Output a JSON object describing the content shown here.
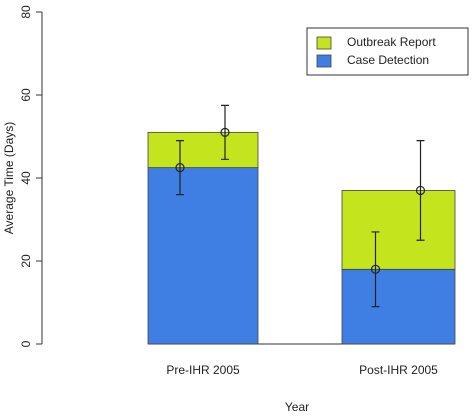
{
  "chart_data": {
    "type": "stacked_bar_error",
    "x_label": "Year",
    "y_label": "Average Time (Days)",
    "categories": [
      "Pre-IHR 2005",
      "Post-IHR 2005"
    ],
    "series": [
      {
        "name": "Case Detection",
        "color": "#3f7fe4",
        "values": [
          42.5,
          18
        ],
        "errors": [
          6.5,
          9
        ]
      },
      {
        "name": "Outbreak Report",
        "color": "#c4e41e",
        "values": [
          8.5,
          19
        ],
        "errors": [
          6.5,
          12
        ]
      }
    ],
    "ylim": [
      0,
      80
    ],
    "yticks": [
      0,
      20,
      40,
      60,
      80
    ],
    "legend": "top-right"
  }
}
